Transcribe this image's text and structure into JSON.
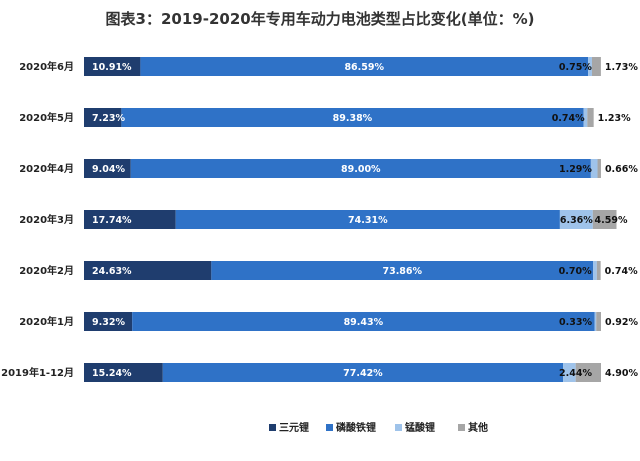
{
  "chart_data": {
    "type": "bar",
    "orientation": "horizontal",
    "stacked": true,
    "title": "图表3：2019-2020年专用车动力电池类型占比变化(单位：%)",
    "categories": [
      "2020年6月",
      "2020年5月",
      "2020年4月",
      "2020年3月",
      "2020年2月",
      "2020年1月",
      "2019年1-12月"
    ],
    "series": [
      {
        "name": "三元锂",
        "color": "#1f3d6e",
        "values": [
          10.91,
          7.23,
          9.04,
          17.74,
          24.63,
          9.32,
          15.24
        ],
        "labels": [
          "10.91%",
          "7.23%",
          "9.04%",
          "17.74%",
          "24.63%",
          "9.32%",
          "15.24%"
        ]
      },
      {
        "name": "磷酸铁锂",
        "color": "#2f72c7",
        "values": [
          86.59,
          89.38,
          89.0,
          74.31,
          73.86,
          89.43,
          77.42
        ],
        "labels": [
          "86.59%",
          "89.38%",
          "89.00%",
          "74.31%",
          "73.86%",
          "89.43%",
          "77.42%"
        ]
      },
      {
        "name": "锰酸锂",
        "color": "#9fc3ea",
        "values": [
          0.75,
          0.74,
          1.29,
          6.36,
          0.7,
          0.33,
          2.44
        ],
        "labels": [
          "0.75%",
          "0.74%",
          "1.29%",
          "6.36%",
          "0.70%",
          "0.33%",
          "2.44%"
        ]
      },
      {
        "name": "其他",
        "color": "#a6a6a6",
        "values": [
          1.73,
          1.23,
          0.66,
          4.59,
          0.74,
          0.92,
          4.9
        ],
        "labels": [
          "1.73%",
          "1.23%",
          "0.66%",
          "4.59%",
          "0.74%",
          "0.92%",
          "4.90%"
        ]
      }
    ],
    "xlim": [
      0,
      100
    ],
    "legend_position": "bottom-center",
    "grid": false
  }
}
